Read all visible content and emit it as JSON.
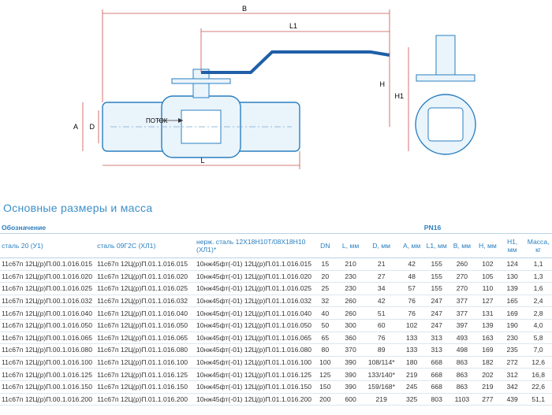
{
  "drawing": {
    "labels": {
      "b": "B",
      "l1": "L1",
      "h": "H",
      "h1": "H1",
      "a": "A",
      "d": "D",
      "l": "L",
      "flow": "ПОТОК"
    }
  },
  "section": {
    "title": "Основные размеры и масса"
  },
  "table": {
    "group_headers": [
      "Обозначение",
      "PN16"
    ],
    "headers": [
      "сталь 20 (У1)",
      "сталь 09Г2С (ХЛ1)",
      "нерж. сталь 12Х18Н10Т/08Х18Н10 (ХЛ1)*",
      "DN",
      "L, мм",
      "D, мм",
      "A, мм",
      "L1, мм",
      "B, мм",
      "H, мм",
      "H1, мм",
      "Масса, кг"
    ],
    "rows": [
      [
        "11с67п 12Ц(р)П.00.1.016.015",
        "11с67п 12Ц(р)П.01.1.016.015",
        "10нж45фт(-01) 12Ц(р)П.01.1.016.015",
        "15",
        "210",
        "21",
        "42",
        "155",
        "260",
        "102",
        "124",
        "1,1"
      ],
      [
        "11с67п 12Ц(р)П.00.1.016.020",
        "11с67п 12Ц(р)П.01.1.016.020",
        "10нж45фт(-01) 12Ц(р)П.01.1.016.020",
        "20",
        "230",
        "27",
        "48",
        "155",
        "270",
        "105",
        "130",
        "1,3"
      ],
      [
        "11с67п 12Ц(р)П.00.1.016.025",
        "11с67п 12Ц(р)П.01.1.016.025",
        "10нж45фт(-01) 12Ц(р)П.01.1.016.025",
        "25",
        "230",
        "34",
        "57",
        "155",
        "270",
        "110",
        "139",
        "1,6"
      ],
      [
        "11с67п 12Ц(р)П.00.1.016.032",
        "11с67п 12Ц(р)П.01.1.016.032",
        "10нж45фт(-01) 12Ц(р)П.01.1.016.032",
        "32",
        "260",
        "42",
        "76",
        "247",
        "377",
        "127",
        "165",
        "2,4"
      ],
      [
        "11с67п 12Ц(р)П.00.1.016.040",
        "11с67п 12Ц(р)П.01.1.016.040",
        "10нж45фт(-01) 12Ц(р)П.01.1.016.040",
        "40",
        "260",
        "51",
        "76",
        "247",
        "377",
        "131",
        "169",
        "2,8"
      ],
      [
        "11с67п 12Ц(р)П.00.1.016.050",
        "11с67п 12Ц(р)П.01.1.016.050",
        "10нж45фт(-01) 12Ц(р)П.01.1.016.050",
        "50",
        "300",
        "60",
        "102",
        "247",
        "397",
        "139",
        "190",
        "4,0"
      ],
      [
        "11с67п 12Ц(р)П.00.1.016.065",
        "11с67п 12Ц(р)П.01.1.016.065",
        "10нж45фт(-01) 12Ц(р)П.01.1.016.065",
        "65",
        "360",
        "76",
        "133",
        "313",
        "493",
        "163",
        "230",
        "5,8"
      ],
      [
        "11с67п 12Ц(р)П.00.1.016.080",
        "11с67п 12Ц(р)П.01.1.016.080",
        "10нж45фт(-01) 12Ц(р)П.01.1.016.080",
        "80",
        "370",
        "89",
        "133",
        "313",
        "498",
        "169",
        "235",
        "7,0"
      ],
      [
        "11с67п 12Ц(р)П.00.1.016.100",
        "11с67п 12Ц(р)П.01.1.016.100",
        "10нж45фт(-01) 12Ц(р)П.01.1.016.100",
        "100",
        "390",
        "108/114*",
        "180",
        "668",
        "863",
        "182",
        "272",
        "12,6"
      ],
      [
        "11с67п 12Ц(р)П.00.1.016.125",
        "11с67п 12Ц(р)П.01.1.016.125",
        "10нж45фт(-01) 12Ц(р)П.01.1.016.125",
        "125",
        "390",
        "133/140*",
        "219",
        "668",
        "863",
        "202",
        "312",
        "16,8"
      ],
      [
        "11с67п 12Ц(р)П.00.1.016.150",
        "11с67п 12Ц(р)П.01.1.016.150",
        "10нж45фт(-01) 12Ц(р)П.01.1.016.150",
        "150",
        "390",
        "159/168*",
        "245",
        "668",
        "863",
        "219",
        "342",
        "22,6"
      ],
      [
        "11с67п 12Ц(р)П.00.1.016.200",
        "11с67п 12Ц(р)П.01.1.016.200",
        "10нж45фт(-01) 12Ц(р)П.01.1.016.200",
        "200",
        "600",
        "219",
        "325",
        "803",
        "1103",
        "277",
        "439",
        "51,1"
      ]
    ]
  }
}
